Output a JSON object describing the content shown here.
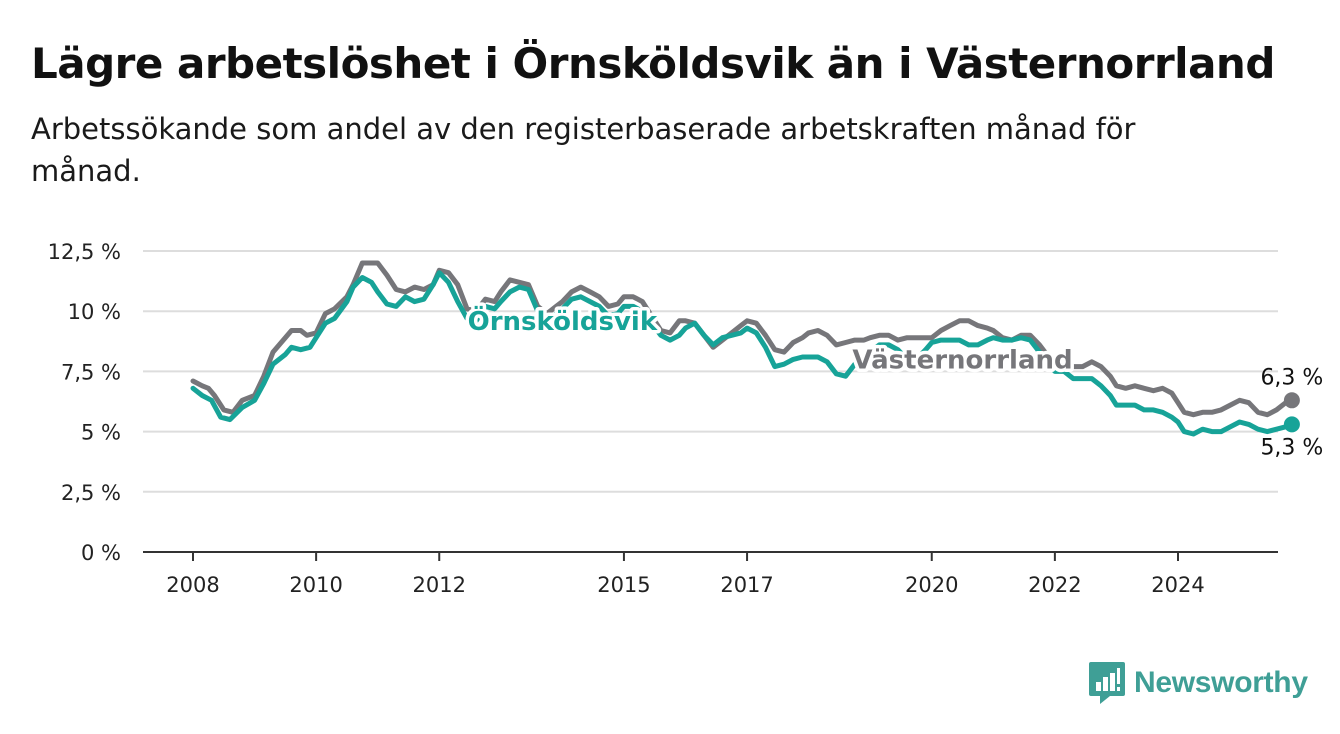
{
  "title": "Lägre arbetslöshet i Örnsköldsvik än i Västernorrland",
  "subtitle": "Arbetssökande som andel av den registerbaserade arbetskraften månad för månad.",
  "brand": {
    "name": "Newsworthy",
    "icon": "newsworthy-logo-icon"
  },
  "colors": {
    "ornskoldsvik": "#17a398",
    "vasternorrland": "#76767a",
    "grid": "#dddddd",
    "axis": "#333333"
  },
  "chart_data": {
    "type": "line",
    "title": "Lägre arbetslöshet i Örnsköldsvik än i Västernorrland",
    "subtitle": "Arbetssökande som andel av den registerbaserade arbetskraften månad för månad.",
    "xlabel": "",
    "ylabel": "",
    "x_range": [
      2007.2,
      2025.8
    ],
    "ylim": [
      0,
      12.5
    ],
    "y_ticks": [
      0,
      2.5,
      5,
      7.5,
      10,
      12.5
    ],
    "y_tick_labels": [
      "0 %",
      "2,5 %",
      "5 %",
      "7,5 %",
      "10 %",
      "12,5 %"
    ],
    "x_ticks": [
      2008,
      2010,
      2012,
      2015,
      2017,
      2020,
      2022,
      2024
    ],
    "x_tick_labels": [
      "2008",
      "2010",
      "2012",
      "2015",
      "2017",
      "2020",
      "2022",
      "2024"
    ],
    "grid": true,
    "legend": "inline labels",
    "series": [
      {
        "name": "Västernorrland",
        "color": "#76767a",
        "end_label": "6,3 %",
        "points": [
          [
            2008.0,
            7.1
          ],
          [
            2008.15,
            6.9
          ],
          [
            2008.25,
            6.8
          ],
          [
            2008.35,
            6.5
          ],
          [
            2008.5,
            5.9
          ],
          [
            2008.65,
            5.8
          ],
          [
            2008.8,
            6.3
          ],
          [
            2009.0,
            6.5
          ],
          [
            2009.15,
            7.3
          ],
          [
            2009.3,
            8.3
          ],
          [
            2009.5,
            8.9
          ],
          [
            2009.6,
            9.2
          ],
          [
            2009.75,
            9.2
          ],
          [
            2009.85,
            9.0
          ],
          [
            2010.0,
            9.1
          ],
          [
            2010.15,
            9.9
          ],
          [
            2010.3,
            10.1
          ],
          [
            2010.5,
            10.6
          ],
          [
            2010.6,
            11.1
          ],
          [
            2010.75,
            12.0
          ],
          [
            2010.9,
            12.0
          ],
          [
            2011.0,
            12.0
          ],
          [
            2011.15,
            11.5
          ],
          [
            2011.3,
            10.9
          ],
          [
            2011.45,
            10.8
          ],
          [
            2011.6,
            11.0
          ],
          [
            2011.75,
            10.9
          ],
          [
            2011.9,
            11.1
          ],
          [
            2012.0,
            11.7
          ],
          [
            2012.15,
            11.6
          ],
          [
            2012.3,
            11.1
          ],
          [
            2012.45,
            10.1
          ],
          [
            2012.6,
            10.0
          ],
          [
            2012.75,
            10.5
          ],
          [
            2012.9,
            10.4
          ],
          [
            2013.0,
            10.8
          ],
          [
            2013.15,
            11.3
          ],
          [
            2013.3,
            11.2
          ],
          [
            2013.45,
            11.1
          ],
          [
            2013.6,
            10.2
          ],
          [
            2013.75,
            9.9
          ],
          [
            2013.9,
            10.2
          ],
          [
            2014.0,
            10.4
          ],
          [
            2014.15,
            10.8
          ],
          [
            2014.3,
            11.0
          ],
          [
            2014.45,
            10.8
          ],
          [
            2014.6,
            10.6
          ],
          [
            2014.75,
            10.2
          ],
          [
            2014.9,
            10.3
          ],
          [
            2015.0,
            10.6
          ],
          [
            2015.15,
            10.6
          ],
          [
            2015.3,
            10.4
          ],
          [
            2015.45,
            9.8
          ],
          [
            2015.6,
            9.2
          ],
          [
            2015.75,
            9.1
          ],
          [
            2015.9,
            9.6
          ],
          [
            2016.0,
            9.6
          ],
          [
            2016.15,
            9.5
          ],
          [
            2016.3,
            9.0
          ],
          [
            2016.45,
            8.5
          ],
          [
            2016.6,
            8.8
          ],
          [
            2016.75,
            9.1
          ],
          [
            2016.9,
            9.4
          ],
          [
            2017.0,
            9.6
          ],
          [
            2017.15,
            9.5
          ],
          [
            2017.3,
            9.0
          ],
          [
            2017.45,
            8.4
          ],
          [
            2017.6,
            8.3
          ],
          [
            2017.75,
            8.7
          ],
          [
            2017.9,
            8.9
          ],
          [
            2018.0,
            9.1
          ],
          [
            2018.15,
            9.2
          ],
          [
            2018.3,
            9.0
          ],
          [
            2018.45,
            8.6
          ],
          [
            2018.6,
            8.7
          ],
          [
            2018.75,
            8.8
          ],
          [
            2018.9,
            8.8
          ],
          [
            2019.0,
            8.9
          ],
          [
            2019.15,
            9.0
          ],
          [
            2019.3,
            9.0
          ],
          [
            2019.45,
            8.8
          ],
          [
            2019.6,
            8.9
          ],
          [
            2019.75,
            8.9
          ],
          [
            2019.9,
            8.9
          ],
          [
            2020.0,
            8.9
          ],
          [
            2020.15,
            9.2
          ],
          [
            2020.3,
            9.4
          ],
          [
            2020.45,
            9.6
          ],
          [
            2020.6,
            9.6
          ],
          [
            2020.75,
            9.4
          ],
          [
            2020.9,
            9.3
          ],
          [
            2021.0,
            9.2
          ],
          [
            2021.15,
            8.9
          ],
          [
            2021.3,
            8.8
          ],
          [
            2021.45,
            9.0
          ],
          [
            2021.6,
            9.0
          ],
          [
            2021.75,
            8.6
          ],
          [
            2021.9,
            8.1
          ],
          [
            2022.0,
            8.0
          ],
          [
            2022.15,
            7.9
          ],
          [
            2022.3,
            7.7
          ],
          [
            2022.45,
            7.7
          ],
          [
            2022.6,
            7.9
          ],
          [
            2022.75,
            7.7
          ],
          [
            2022.9,
            7.3
          ],
          [
            2023.0,
            6.9
          ],
          [
            2023.15,
            6.8
          ],
          [
            2023.3,
            6.9
          ],
          [
            2023.45,
            6.8
          ],
          [
            2023.6,
            6.7
          ],
          [
            2023.75,
            6.8
          ],
          [
            2023.9,
            6.6
          ],
          [
            2024.0,
            6.2
          ],
          [
            2024.1,
            5.8
          ],
          [
            2024.25,
            5.7
          ],
          [
            2024.4,
            5.8
          ],
          [
            2024.55,
            5.8
          ],
          [
            2024.7,
            5.9
          ],
          [
            2024.85,
            6.1
          ],
          [
            2025.0,
            6.3
          ],
          [
            2025.15,
            6.2
          ],
          [
            2025.3,
            5.8
          ],
          [
            2025.45,
            5.7
          ],
          [
            2025.6,
            5.9
          ],
          [
            2025.75,
            6.2
          ],
          [
            2025.85,
            6.3
          ]
        ]
      },
      {
        "name": "Örnsköldsvik",
        "color": "#17a398",
        "end_label": "5,3 %",
        "points": [
          [
            2008.0,
            6.8
          ],
          [
            2008.15,
            6.5
          ],
          [
            2008.3,
            6.3
          ],
          [
            2008.45,
            5.6
          ],
          [
            2008.6,
            5.5
          ],
          [
            2008.8,
            6.0
          ],
          [
            2009.0,
            6.3
          ],
          [
            2009.15,
            7.0
          ],
          [
            2009.3,
            7.8
          ],
          [
            2009.5,
            8.2
          ],
          [
            2009.6,
            8.5
          ],
          [
            2009.75,
            8.4
          ],
          [
            2009.9,
            8.5
          ],
          [
            2010.0,
            8.9
          ],
          [
            2010.15,
            9.5
          ],
          [
            2010.3,
            9.7
          ],
          [
            2010.5,
            10.4
          ],
          [
            2010.6,
            11.0
          ],
          [
            2010.75,
            11.4
          ],
          [
            2010.9,
            11.2
          ],
          [
            2011.0,
            10.8
          ],
          [
            2011.15,
            10.3
          ],
          [
            2011.3,
            10.2
          ],
          [
            2011.45,
            10.6
          ],
          [
            2011.6,
            10.4
          ],
          [
            2011.75,
            10.5
          ],
          [
            2011.9,
            11.1
          ],
          [
            2012.0,
            11.6
          ],
          [
            2012.15,
            11.2
          ],
          [
            2012.3,
            10.4
          ],
          [
            2012.45,
            9.7
          ],
          [
            2012.6,
            9.6
          ],
          [
            2012.75,
            10.2
          ],
          [
            2012.9,
            10.1
          ],
          [
            2013.0,
            10.4
          ],
          [
            2013.15,
            10.8
          ],
          [
            2013.3,
            11.0
          ],
          [
            2013.45,
            10.9
          ],
          [
            2013.6,
            10.0
          ],
          [
            2013.75,
            9.6
          ],
          [
            2013.9,
            9.9
          ],
          [
            2014.0,
            10.1
          ],
          [
            2014.15,
            10.5
          ],
          [
            2014.3,
            10.6
          ],
          [
            2014.45,
            10.4
          ],
          [
            2014.6,
            10.2
          ],
          [
            2014.75,
            9.8
          ],
          [
            2014.9,
            9.9
          ],
          [
            2015.0,
            10.2
          ],
          [
            2015.15,
            10.2
          ],
          [
            2015.3,
            10.0
          ],
          [
            2015.45,
            9.5
          ],
          [
            2015.6,
            9.0
          ],
          [
            2015.75,
            8.8
          ],
          [
            2015.9,
            9.0
          ],
          [
            2016.0,
            9.3
          ],
          [
            2016.15,
            9.5
          ],
          [
            2016.3,
            9.0
          ],
          [
            2016.45,
            8.6
          ],
          [
            2016.6,
            8.9
          ],
          [
            2016.75,
            9.0
          ],
          [
            2016.9,
            9.1
          ],
          [
            2017.0,
            9.3
          ],
          [
            2017.15,
            9.1
          ],
          [
            2017.3,
            8.5
          ],
          [
            2017.45,
            7.7
          ],
          [
            2017.6,
            7.8
          ],
          [
            2017.75,
            8.0
          ],
          [
            2017.9,
            8.1
          ],
          [
            2018.0,
            8.1
          ],
          [
            2018.15,
            8.1
          ],
          [
            2018.3,
            7.9
          ],
          [
            2018.45,
            7.4
          ],
          [
            2018.6,
            7.3
          ],
          [
            2018.75,
            7.8
          ],
          [
            2018.9,
            8.0
          ],
          [
            2019.0,
            8.3
          ],
          [
            2019.15,
            8.6
          ],
          [
            2019.3,
            8.6
          ],
          [
            2019.45,
            8.4
          ],
          [
            2019.6,
            8.0
          ],
          [
            2019.75,
            8.0
          ],
          [
            2019.9,
            8.4
          ],
          [
            2020.0,
            8.7
          ],
          [
            2020.15,
            8.8
          ],
          [
            2020.3,
            8.8
          ],
          [
            2020.45,
            8.8
          ],
          [
            2020.6,
            8.6
          ],
          [
            2020.75,
            8.6
          ],
          [
            2020.9,
            8.8
          ],
          [
            2021.0,
            8.9
          ],
          [
            2021.15,
            8.8
          ],
          [
            2021.3,
            8.8
          ],
          [
            2021.45,
            8.9
          ],
          [
            2021.6,
            8.8
          ],
          [
            2021.75,
            8.3
          ],
          [
            2021.9,
            7.8
          ],
          [
            2022.0,
            7.5
          ],
          [
            2022.15,
            7.5
          ],
          [
            2022.3,
            7.2
          ],
          [
            2022.45,
            7.2
          ],
          [
            2022.6,
            7.2
          ],
          [
            2022.75,
            6.9
          ],
          [
            2022.9,
            6.5
          ],
          [
            2023.0,
            6.1
          ],
          [
            2023.15,
            6.1
          ],
          [
            2023.3,
            6.1
          ],
          [
            2023.45,
            5.9
          ],
          [
            2023.6,
            5.9
          ],
          [
            2023.75,
            5.8
          ],
          [
            2023.9,
            5.6
          ],
          [
            2024.0,
            5.4
          ],
          [
            2024.1,
            5.0
          ],
          [
            2024.25,
            4.9
          ],
          [
            2024.4,
            5.1
          ],
          [
            2024.55,
            5.0
          ],
          [
            2024.7,
            5.0
          ],
          [
            2024.85,
            5.2
          ],
          [
            2025.0,
            5.4
          ],
          [
            2025.15,
            5.3
          ],
          [
            2025.3,
            5.1
          ],
          [
            2025.45,
            5.0
          ],
          [
            2025.6,
            5.1
          ],
          [
            2025.75,
            5.2
          ],
          [
            2025.85,
            5.3
          ]
        ]
      }
    ],
    "annotations": [
      {
        "text": "Örnsköldsvik",
        "series": "Örnsköldsvik",
        "x": 2014.0,
        "y": 9.6
      },
      {
        "text": "Västernorrland",
        "series": "Västernorrland",
        "x": 2020.5,
        "y": 8.0
      }
    ]
  }
}
